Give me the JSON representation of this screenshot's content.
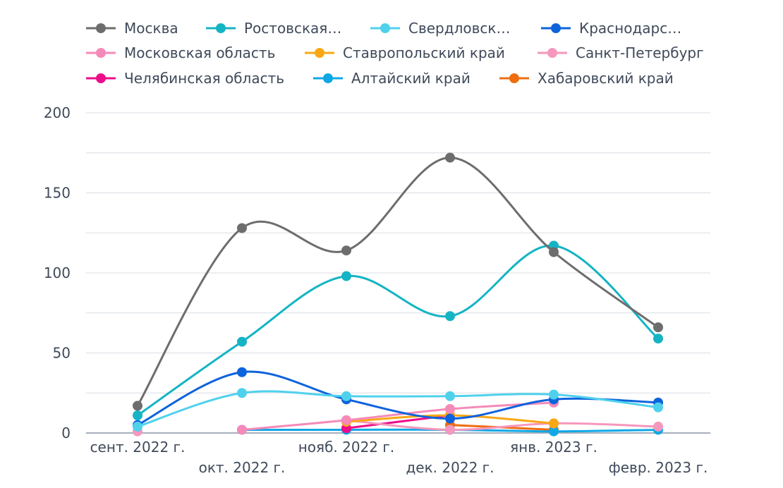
{
  "chart_data": {
    "type": "line",
    "title": "",
    "xlabel": "",
    "ylabel": "",
    "ylim": [
      0,
      200
    ],
    "yticks": [
      0,
      50,
      100,
      150,
      200
    ],
    "grid": true,
    "legend_position": "top",
    "categories": [
      "сент. 2022 г.",
      "окт. 2022 г.",
      "нояб. 2022 г.",
      "дек. 2022 г.",
      "янв. 2023 г.",
      "февр. 2023 г."
    ],
    "series": [
      {
        "name": "Москва",
        "legend_label": "Москва",
        "color": "#6d6d6d",
        "values": [
          17,
          128,
          114,
          172,
          113,
          66
        ]
      },
      {
        "name": "Ростовская…",
        "legend_label": "Ростовская…",
        "color": "#14b4c4",
        "values": [
          11,
          57,
          98,
          73,
          117,
          59
        ]
      },
      {
        "name": "Свердловск…",
        "legend_label": "Свердловск…",
        "color": "#4fd1ec",
        "values": [
          4,
          25,
          23,
          23,
          24,
          16
        ]
      },
      {
        "name": "Краснодарс…",
        "legend_label": "Краснодарс…",
        "color": "#0d63dc",
        "values": [
          5,
          38,
          21,
          9,
          21,
          19
        ]
      },
      {
        "name": "Московская область",
        "legend_label": "Московская область",
        "color": "#f58ab8",
        "values": [
          null,
          2,
          8,
          15,
          19,
          null
        ]
      },
      {
        "name": "Ставропольский край",
        "legend_label": "Ставропольский край",
        "color": "#f8a814",
        "values": [
          null,
          null,
          7,
          11,
          6,
          null
        ]
      },
      {
        "name": "Санкт-Петербург",
        "legend_label": "Санкт-Петербург",
        "color": "#f697bd",
        "values": [
          1,
          null,
          8,
          2,
          6,
          4
        ]
      },
      {
        "name": "Челябинская область",
        "legend_label": "Челябинская область",
        "color": "#ec0d88",
        "values": [
          null,
          null,
          3,
          11,
          null,
          null
        ]
      },
      {
        "name": "Алтайский край",
        "legend_label": "Алтайский край",
        "color": "#0fa8e6",
        "values": [
          null,
          2,
          2,
          2,
          1,
          2
        ]
      },
      {
        "name": "Хабаровский край",
        "legend_label": "Хабаровский край",
        "color": "#ee6d10",
        "values": [
          null,
          null,
          null,
          5,
          2,
          null
        ]
      }
    ]
  }
}
